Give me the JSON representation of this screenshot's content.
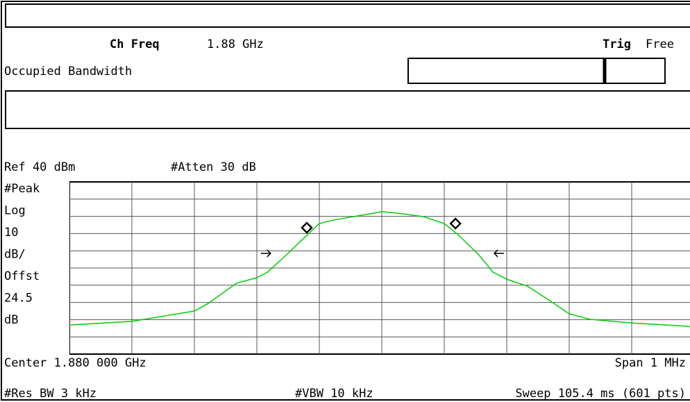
{
  "header": {
    "ch_freq_label": "Ch Freq",
    "ch_freq": "1.88 GHz",
    "trig_label": "Trig",
    "trig": "Free",
    "mode": "Occupied Bandwidth"
  },
  "chart_data": {
    "type": "line",
    "ref": "Ref 40 dBm",
    "atten": "#Atten 30 dB",
    "scale_info": [
      "#Peak",
      "Log",
      "10",
      "dB/",
      "Offst",
      "24.5",
      "dB"
    ],
    "x": [
      -500,
      -400,
      -300,
      -278,
      -233,
      -200,
      -183,
      -156,
      -133,
      -100,
      -78,
      -33,
      0,
      33,
      67,
      100,
      122,
      156,
      178,
      200,
      233,
      267,
      300,
      333,
      400,
      493
    ],
    "series": [
      {
        "color": "#00cc00",
        "values": [
          -43.1,
          -41.0,
          -35.0,
          -30.6,
          -18.9,
          -15.6,
          -12.4,
          -3.5,
          4.5,
          15.8,
          17.8,
          20.6,
          22.7,
          21.5,
          19.8,
          15.8,
          9.4,
          -2.7,
          -12.4,
          -16.5,
          -20.5,
          -28.5,
          -36.6,
          -39.8,
          -41.9,
          -43.9
        ]
      }
    ],
    "xlim": [
      -500,
      500
    ],
    "ylim": [
      -60,
      40
    ],
    "grid": true,
    "markers": {
      "x": [
        -120,
        118
      ],
      "values": [
        13.4,
        15.8
      ]
    },
    "arrows": {
      "x": [
        -178,
        180
      ],
      "values": [
        -1.5,
        -1.5
      ],
      "direction": [
        "right",
        "left"
      ]
    },
    "footer": {
      "center": "Center 1.880 000 GHz",
      "span": "Span 1 MHz",
      "res_bw": "#Res BW 3 kHz",
      "vbw": "#VBW 10 kHz",
      "sweep": "Sweep 105.4 ms (601 pts)"
    }
  }
}
